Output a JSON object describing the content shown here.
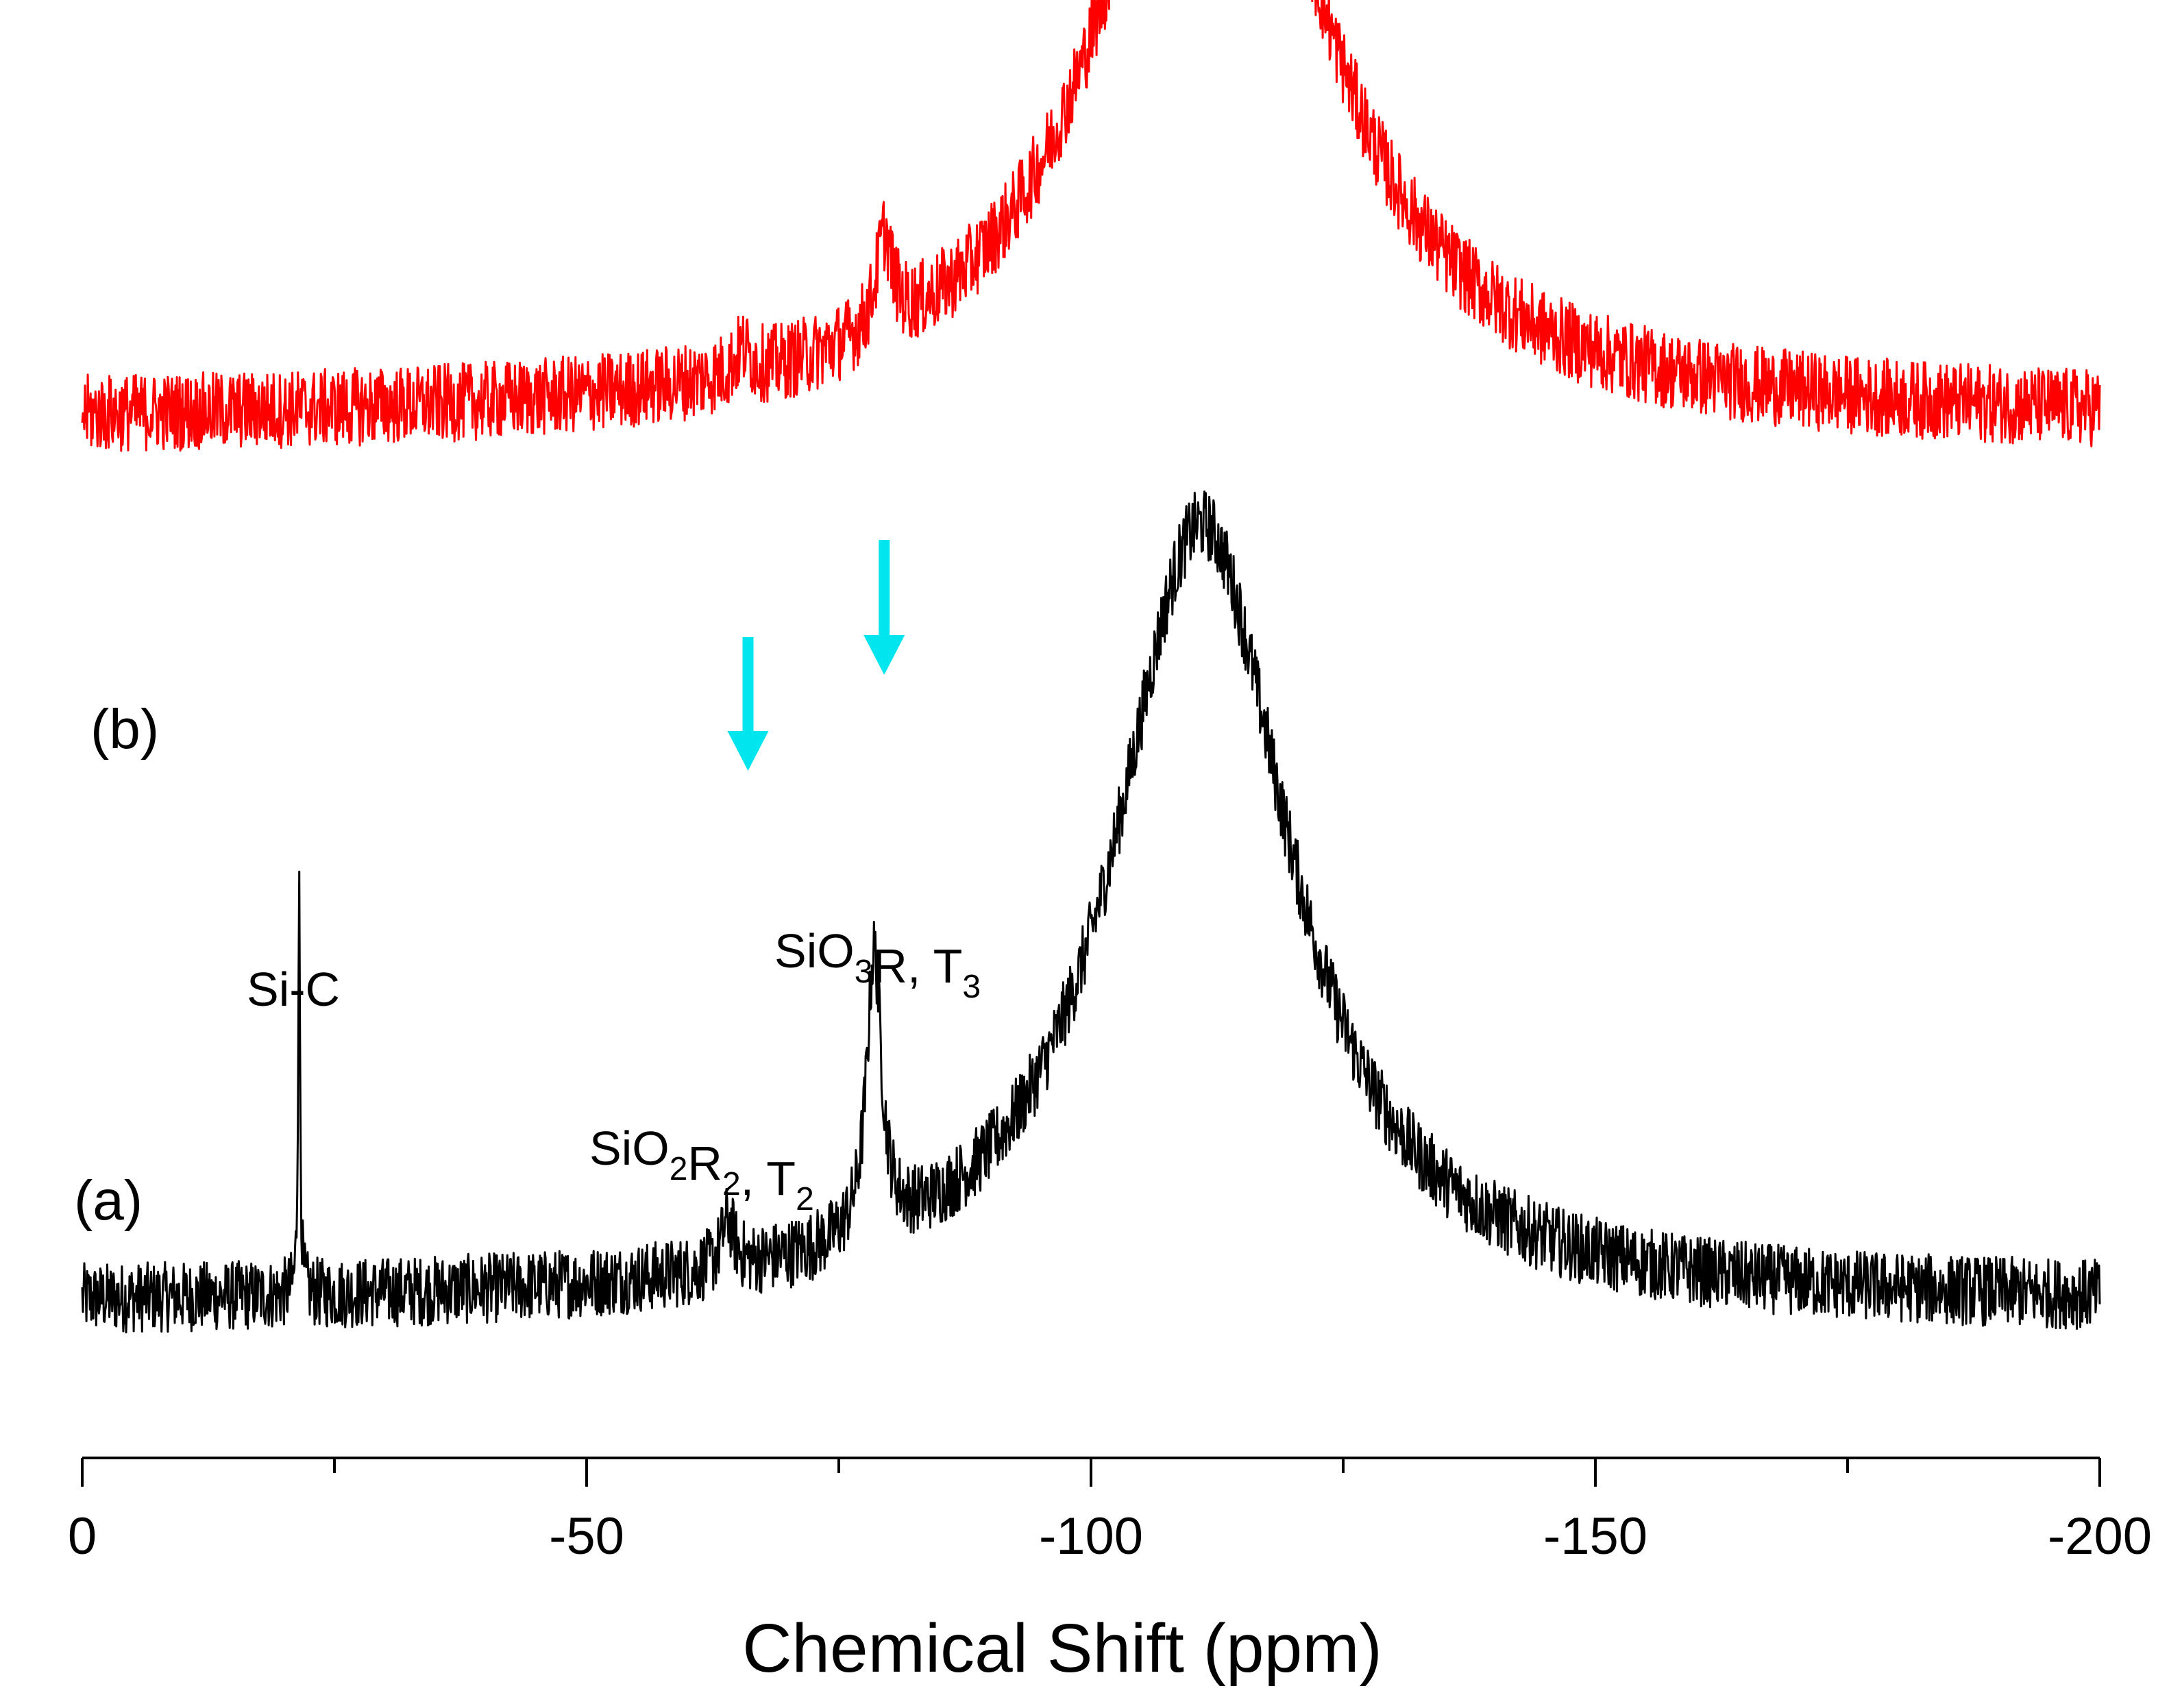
{
  "chart_data": {
    "type": "line",
    "title": "",
    "xlabel": "Chemical Shift (ppm)",
    "ylabel": "",
    "xlim": [
      0,
      -200
    ],
    "x_ticks": [
      0,
      -50,
      -100,
      -150,
      -200
    ],
    "x_minor_ticks": [
      -25,
      -75,
      -125,
      -175
    ],
    "x_tick_labels": [
      "0",
      "-50",
      "-100",
      "-150",
      "-200"
    ],
    "grid": false,
    "series": [
      {
        "name": "(a)",
        "label": "(a)",
        "color": "#000000",
        "baseline": 0.0,
        "noise": 0.045,
        "peaks": [
          {
            "center": -111,
            "height": 1.0,
            "width": 10.5,
            "shape": "lorentzian"
          },
          {
            "center": -78.5,
            "height": 0.36,
            "width": 0.9,
            "shape": "lorentzian"
          },
          {
            "center": -64,
            "height": 0.06,
            "width": 0.8,
            "shape": "lorentzian"
          },
          {
            "center": -21.5,
            "height": 0.52,
            "width": 0.12,
            "shape": "lorentzian"
          }
        ]
      },
      {
        "name": "(b)",
        "label": "(b)",
        "color": "#ff0000",
        "baseline": 1.13,
        "noise": 0.05,
        "peaks": [
          {
            "center": -112,
            "height": 0.95,
            "width": 12.5,
            "shape": "lorentzian"
          },
          {
            "center": -79.5,
            "height": 0.12,
            "width": 1.0,
            "shape": "lorentzian"
          },
          {
            "center": -65.5,
            "height": 0.03,
            "width": 1.0,
            "shape": "lorentzian"
          }
        ]
      }
    ],
    "annotations": [
      {
        "name": "si-c",
        "text": "Si-C",
        "x": -21.5
      },
      {
        "name": "sio2r2-t2",
        "parts": [
          [
            "SiO",
            ""
          ],
          [
            "2",
            "sub"
          ],
          [
            "R",
            ""
          ],
          [
            "2",
            "sub"
          ],
          [
            ", T",
            ""
          ],
          [
            "2",
            "sub"
          ]
        ],
        "x": -64
      },
      {
        "name": "sio3r-t3",
        "parts": [
          [
            "SiO",
            ""
          ],
          [
            "3",
            "sub"
          ],
          [
            "R, T",
            ""
          ],
          [
            "3",
            "sub"
          ]
        ],
        "x": -78.5
      }
    ],
    "arrows": [
      {
        "name": "arrow-t2",
        "x": -66,
        "color": "#00e5ee"
      },
      {
        "name": "arrow-t3",
        "x": -79.5,
        "color": "#00e5ee"
      }
    ]
  }
}
